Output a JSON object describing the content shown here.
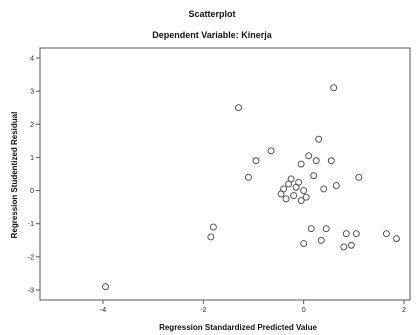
{
  "chart_data": {
    "type": "scatter",
    "title": "Scatterplot",
    "subtitle": "Dependent Variable: Kinerja",
    "xlabel": "Regression Standardized Predicted Value",
    "ylabel": "Regression Studentized Residual",
    "xlim": [
      -4,
      2
    ],
    "ylim": [
      -3,
      4
    ],
    "xticks": [
      "-4",
      "-2",
      "0",
      "2"
    ],
    "yticks": [
      "4",
      "3",
      "2",
      "1",
      "0",
      "-1",
      "-2",
      "-3"
    ],
    "xtick_values": [
      -4,
      -2,
      0,
      2
    ],
    "ytick_values": [
      4,
      3,
      2,
      1,
      0,
      -1,
      -2,
      -3
    ],
    "grid": false,
    "marker": "open-circle",
    "points": [
      {
        "x": -3.95,
        "y": -2.9
      },
      {
        "x": -1.85,
        "y": -1.4
      },
      {
        "x": -1.8,
        "y": -1.1
      },
      {
        "x": -1.3,
        "y": 2.5
      },
      {
        "x": -1.1,
        "y": 0.4
      },
      {
        "x": -0.95,
        "y": 0.9
      },
      {
        "x": -0.65,
        "y": 1.2
      },
      {
        "x": -0.45,
        "y": -0.1
      },
      {
        "x": -0.4,
        "y": 0.05
      },
      {
        "x": -0.35,
        "y": -0.25
      },
      {
        "x": -0.3,
        "y": 0.2
      },
      {
        "x": -0.25,
        "y": 0.35
      },
      {
        "x": -0.2,
        "y": -0.15
      },
      {
        "x": -0.15,
        "y": 0.1
      },
      {
        "x": -0.1,
        "y": 0.25
      },
      {
        "x": -0.05,
        "y": -0.3
      },
      {
        "x": -0.05,
        "y": 0.8
      },
      {
        "x": 0.0,
        "y": -1.6
      },
      {
        "x": 0.0,
        "y": 0.0
      },
      {
        "x": 0.05,
        "y": -0.2
      },
      {
        "x": 0.1,
        "y": 1.05
      },
      {
        "x": 0.15,
        "y": -1.15
      },
      {
        "x": 0.2,
        "y": 0.45
      },
      {
        "x": 0.25,
        "y": 0.9
      },
      {
        "x": 0.3,
        "y": 1.55
      },
      {
        "x": 0.35,
        "y": -1.5
      },
      {
        "x": 0.4,
        "y": 0.05
      },
      {
        "x": 0.45,
        "y": -1.15
      },
      {
        "x": 0.55,
        "y": 0.9
      },
      {
        "x": 0.6,
        "y": 3.1
      },
      {
        "x": 0.65,
        "y": 0.15
      },
      {
        "x": 0.8,
        "y": -1.7
      },
      {
        "x": 0.85,
        "y": -1.3
      },
      {
        "x": 0.95,
        "y": -1.65
      },
      {
        "x": 1.05,
        "y": -1.3
      },
      {
        "x": 1.1,
        "y": 0.4
      },
      {
        "x": 1.65,
        "y": -1.3
      },
      {
        "x": 1.85,
        "y": -1.45
      }
    ]
  }
}
